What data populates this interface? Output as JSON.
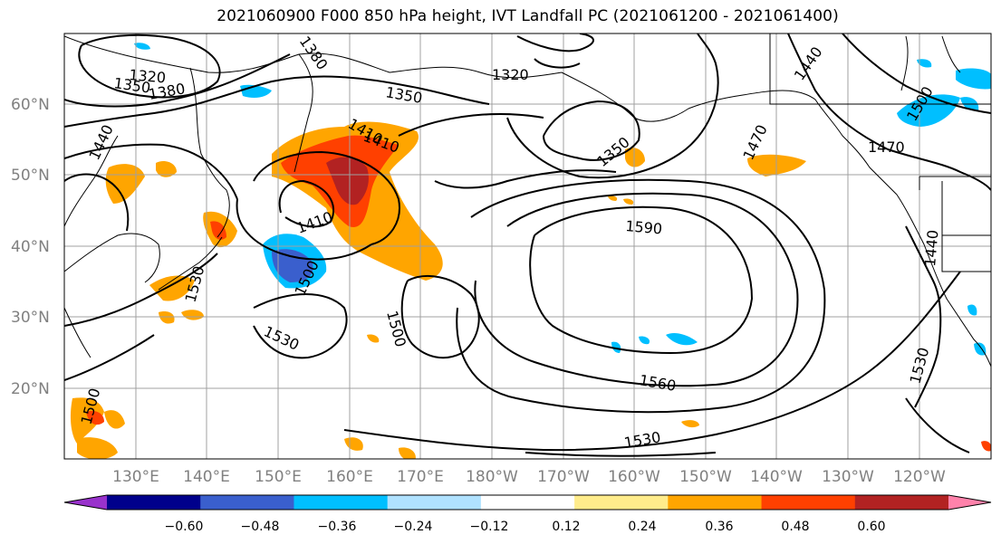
{
  "title": "2021060900 F000 850 hPa height, IVT Landfall PC (2021061200 - 2021061400)",
  "lat_labels": [
    "60°N",
    "50°N",
    "40°N",
    "30°N",
    "20°N"
  ],
  "lon_labels": [
    "130°E",
    "140°E",
    "150°E",
    "160°E",
    "170°E",
    "180°W",
    "170°W",
    "160°W",
    "150°W",
    "140°W",
    "130°W",
    "120°W"
  ],
  "contour_labels": [
    "1320",
    "1350",
    "1380",
    "1380",
    "1320",
    "1350",
    "1440",
    "1410",
    "1410",
    "1350",
    "1470",
    "1440",
    "1500",
    "1470",
    "1590",
    "1410",
    "1500",
    "1530",
    "1530",
    "1500",
    "1440",
    "1560",
    "1530",
    "1530",
    "1500"
  ],
  "colorbar": {
    "ticks": [
      "−0.60",
      "−0.48",
      "−0.36",
      "−0.24",
      "−0.12",
      "0.12",
      "0.24",
      "0.36",
      "0.48",
      "0.60"
    ],
    "colors": [
      "#9932cc",
      "#00008b",
      "#3a5fcd",
      "#00bfff",
      "#b0e2ff",
      "#ffffff",
      "#ffec8b",
      "#ffa500",
      "#ff4000",
      "#b22222",
      "#ff82ab"
    ]
  }
}
